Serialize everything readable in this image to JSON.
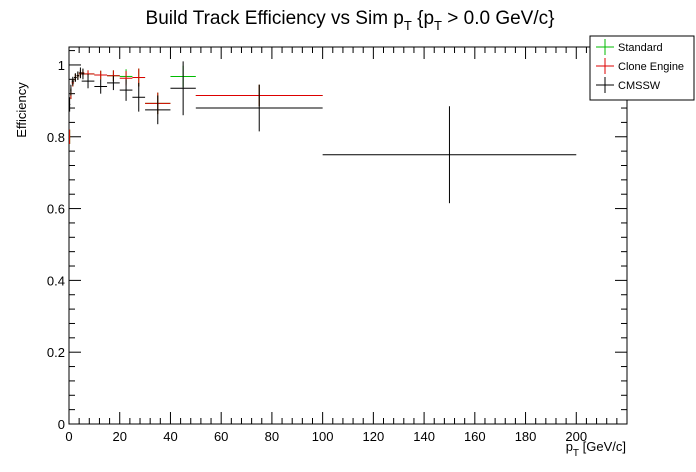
{
  "chart_data": {
    "type": "scatter",
    "title": {
      "main": "Build Track Efficiency vs Sim p",
      "sub1": "T",
      "mid": " {p",
      "sub2": "T",
      "tail": " > 0.0 GeV/c}"
    },
    "xlabel": {
      "main": "p",
      "sub": "T",
      "tail": " [GeV/c]"
    },
    "ylabel": "Efficiency",
    "xlim": [
      0,
      220
    ],
    "ylim": [
      0,
      1.05
    ],
    "x_ticks": [
      0,
      20,
      40,
      60,
      80,
      100,
      120,
      140,
      160,
      180,
      200
    ],
    "x_tick_labels": [
      "0",
      "20",
      "40",
      "60",
      "80",
      "100",
      "120",
      "140",
      "160",
      "180",
      "200"
    ],
    "y_ticks": [
      0,
      0.2,
      0.4,
      0.6,
      0.8,
      1
    ],
    "y_tick_labels": [
      "0",
      "0.2",
      "0.4",
      "0.6",
      "0.8",
      "1"
    ],
    "grid": false,
    "legend_position": "top-right",
    "series": [
      {
        "name": "Standard",
        "color": "#00bb00",
        "points": [
          {
            "x": 0.25,
            "xerr": 0.25,
            "y": 0.8,
            "yerr": 0.02
          },
          {
            "x": 0.75,
            "xerr": 0.25,
            "y": 0.92,
            "yerr": 0.015
          },
          {
            "x": 1.5,
            "xerr": 0.5,
            "y": 0.95,
            "yerr": 0.01
          },
          {
            "x": 2.5,
            "xerr": 0.5,
            "y": 0.965,
            "yerr": 0.01
          },
          {
            "x": 3.5,
            "xerr": 0.5,
            "y": 0.97,
            "yerr": 0.01
          },
          {
            "x": 4.5,
            "xerr": 0.5,
            "y": 0.975,
            "yerr": 0.01
          },
          {
            "x": 5.5,
            "xerr": 0.5,
            "y": 0.978,
            "yerr": 0.01
          },
          {
            "x": 7.5,
            "xerr": 2.5,
            "y": 0.975,
            "yerr": 0.01
          },
          {
            "x": 12.5,
            "xerr": 2.5,
            "y": 0.972,
            "yerr": 0.012
          },
          {
            "x": 17.5,
            "xerr": 2.5,
            "y": 0.97,
            "yerr": 0.015
          },
          {
            "x": 22.5,
            "xerr": 2.5,
            "y": 0.968,
            "yerr": 0.02
          },
          {
            "x": 27.5,
            "xerr": 2.5,
            "y": 0.965,
            "yerr": 0.025
          },
          {
            "x": 35,
            "xerr": 5,
            "y": 0.893,
            "yerr": 0.03
          },
          {
            "x": 45,
            "xerr": 5,
            "y": 0.968,
            "yerr": 0.03
          },
          {
            "x": 75,
            "xerr": 25,
            "y": 0.915,
            "yerr": 0.03
          }
        ]
      },
      {
        "name": "Clone Engine",
        "color": "#dd0000",
        "points": [
          {
            "x": 0.25,
            "xerr": 0.25,
            "y": 0.8,
            "yerr": 0.02
          },
          {
            "x": 0.75,
            "xerr": 0.25,
            "y": 0.92,
            "yerr": 0.015
          },
          {
            "x": 1.5,
            "xerr": 0.5,
            "y": 0.95,
            "yerr": 0.01
          },
          {
            "x": 2.5,
            "xerr": 0.5,
            "y": 0.965,
            "yerr": 0.01
          },
          {
            "x": 3.5,
            "xerr": 0.5,
            "y": 0.97,
            "yerr": 0.01
          },
          {
            "x": 4.5,
            "xerr": 0.5,
            "y": 0.975,
            "yerr": 0.01
          },
          {
            "x": 5.5,
            "xerr": 0.5,
            "y": 0.978,
            "yerr": 0.01
          },
          {
            "x": 7.5,
            "xerr": 2.5,
            "y": 0.975,
            "yerr": 0.01
          },
          {
            "x": 12.5,
            "xerr": 2.5,
            "y": 0.972,
            "yerr": 0.012
          },
          {
            "x": 17.5,
            "xerr": 2.5,
            "y": 0.97,
            "yerr": 0.015
          },
          {
            "x": 22.5,
            "xerr": 2.5,
            "y": 0.963,
            "yerr": 0.02
          },
          {
            "x": 27.5,
            "xerr": 2.5,
            "y": 0.965,
            "yerr": 0.025
          },
          {
            "x": 35,
            "xerr": 5,
            "y": 0.893,
            "yerr": 0.03
          },
          {
            "x": 75,
            "xerr": 25,
            "y": 0.915,
            "yerr": 0.03
          }
        ]
      },
      {
        "name": "CMSSW",
        "color": "#000000",
        "points": [
          {
            "x": 0.25,
            "xerr": 0.25,
            "y": 0.89,
            "yerr": 0.02
          },
          {
            "x": 0.75,
            "xerr": 0.25,
            "y": 0.93,
            "yerr": 0.015
          },
          {
            "x": 1.5,
            "xerr": 0.5,
            "y": 0.955,
            "yerr": 0.012
          },
          {
            "x": 2.5,
            "xerr": 0.5,
            "y": 0.965,
            "yerr": 0.012
          },
          {
            "x": 3.5,
            "xerr": 0.5,
            "y": 0.97,
            "yerr": 0.012
          },
          {
            "x": 4.5,
            "xerr": 0.5,
            "y": 0.978,
            "yerr": 0.015
          },
          {
            "x": 5.5,
            "xerr": 0.5,
            "y": 0.975,
            "yerr": 0.015
          },
          {
            "x": 7.5,
            "xerr": 2.5,
            "y": 0.955,
            "yerr": 0.02
          },
          {
            "x": 12.5,
            "xerr": 2.5,
            "y": 0.94,
            "yerr": 0.02
          },
          {
            "x": 17.5,
            "xerr": 2.5,
            "y": 0.95,
            "yerr": 0.02
          },
          {
            "x": 22.5,
            "xerr": 2.5,
            "y": 0.93,
            "yerr": 0.03
          },
          {
            "x": 27.5,
            "xerr": 2.5,
            "y": 0.91,
            "yerr": 0.04
          },
          {
            "x": 35,
            "xerr": 5,
            "y": 0.875,
            "yerr": 0.04
          },
          {
            "x": 45,
            "xerr": 5,
            "y": 0.935,
            "yerr": 0.075
          },
          {
            "x": 75,
            "xerr": 25,
            "y": 0.88,
            "yerr": 0.065
          },
          {
            "x": 150,
            "xerr": 50,
            "y": 0.75,
            "yerr": 0.135
          }
        ]
      }
    ]
  }
}
